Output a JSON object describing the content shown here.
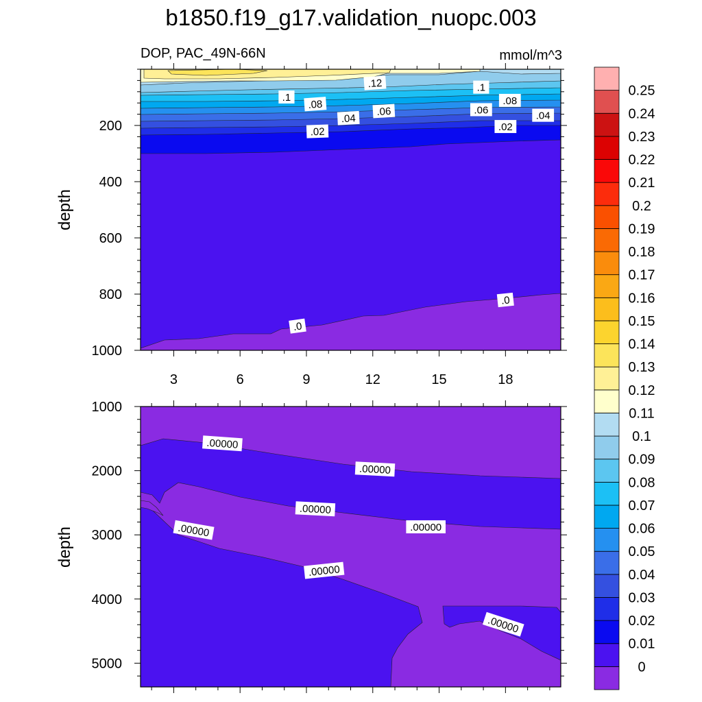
{
  "title": "b1850.f19_g17.validation_nuopc.003",
  "subtitle_left": "DOP, PAC_49N-66N",
  "subtitle_right": "mmol/m^3",
  "colorbar": {
    "colors": [
      "#8a2be2",
      "#4b12f0",
      "#0a0af0",
      "#1f2ee8",
      "#3450e0",
      "#3a6ee8",
      "#2590f0",
      "#00a8f0",
      "#1cc0f5",
      "#5cc6f0",
      "#90ccec",
      "#b2dcf2",
      "#ffffcc",
      "#fff096",
      "#fce45a",
      "#fcd42e",
      "#fcbe1c",
      "#faa814",
      "#fa8c0c",
      "#fa6a04",
      "#fa5000",
      "#fc2c0c",
      "#fa0808",
      "#dc0202",
      "#cc1212",
      "#e05050",
      "#ffb0b0"
    ],
    "labels": [
      "0",
      "0.01",
      "0.02",
      "0.03",
      "0.04",
      "0.05",
      "0.06",
      "0.07",
      "0.08",
      "0.09",
      "0.1",
      "0.11",
      "0.12",
      "0.13",
      "0.14",
      "0.15",
      "0.16",
      "0.17",
      "0.18",
      "0.19",
      "0.2",
      "0.21",
      "0.22",
      "0.23",
      "0.24",
      "0.25"
    ]
  },
  "chart_data": [
    {
      "type": "contour",
      "panel": "top",
      "xlabel": "",
      "ylabel": "depth",
      "xlim": [
        1.5,
        20.5
      ],
      "ylim": [
        1000,
        0
      ],
      "xticks": [
        3,
        6,
        9,
        12,
        15,
        18
      ],
      "xtick_labels": [
        "3",
        "6",
        "9",
        "12",
        "15",
        "18"
      ],
      "yticks": [
        200,
        400,
        600,
        800,
        1000
      ],
      "ytick_labels": [
        "200",
        "400",
        "600",
        "800",
        "1000"
      ],
      "contour_labels": [
        {
          "text": ".12",
          "x": 12.1,
          "y": 50,
          "angle": -4
        },
        {
          "text": ".1",
          "x": 8.1,
          "y": 100,
          "angle": 0
        },
        {
          "text": ".1",
          "x": 16.9,
          "y": 65,
          "angle": 0
        },
        {
          "text": ".08",
          "x": 9.4,
          "y": 125,
          "angle": -4
        },
        {
          "text": ".08",
          "x": 18.2,
          "y": 112,
          "angle": 0
        },
        {
          "text": ".06",
          "x": 12.5,
          "y": 150,
          "angle": -3
        },
        {
          "text": ".06",
          "x": 16.9,
          "y": 145,
          "angle": 0
        },
        {
          "text": ".04",
          "x": 10.9,
          "y": 175,
          "angle": -3
        },
        {
          "text": ".04",
          "x": 19.7,
          "y": 165,
          "angle": 0
        },
        {
          "text": ".02",
          "x": 9.5,
          "y": 222,
          "angle": -2
        },
        {
          "text": ".02",
          "x": 18.0,
          "y": 205,
          "angle": 0
        },
        {
          "text": ".0",
          "x": 8.6,
          "y": 915,
          "angle": -8
        },
        {
          "text": ".0",
          "x": 18.0,
          "y": 822,
          "angle": -6
        }
      ]
    },
    {
      "type": "contour",
      "panel": "bottom",
      "xlabel": "",
      "ylabel": "depth",
      "xlim": [
        1.5,
        20.5
      ],
      "ylim": [
        5370,
        1000
      ],
      "yticks": [
        1000,
        2000,
        3000,
        4000,
        5000
      ],
      "ytick_labels": [
        "1000",
        "2000",
        "3000",
        "4000",
        "5000"
      ],
      "contour_labels": [
        {
          "text": ".00000",
          "x": 5.2,
          "y": 1580,
          "angle": 4
        },
        {
          "text": ".00000",
          "x": 12.1,
          "y": 1980,
          "angle": 3
        },
        {
          "text": ".00000",
          "x": 9.4,
          "y": 2600,
          "angle": 3
        },
        {
          "text": ".00000",
          "x": 3.9,
          "y": 2930,
          "angle": 10
        },
        {
          "text": ".00000",
          "x": 14.4,
          "y": 2880,
          "angle": 0
        },
        {
          "text": ".00000",
          "x": 9.8,
          "y": 3560,
          "angle": -6
        },
        {
          "text": ".00000",
          "x": 17.9,
          "y": 4400,
          "angle": 18
        }
      ]
    }
  ]
}
